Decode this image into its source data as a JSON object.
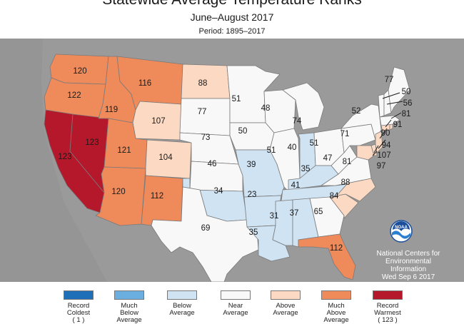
{
  "title": "Statewide Average Temperature Ranks",
  "subtitle": "June–August 2017",
  "period": "Period: 1895–2017",
  "agency": {
    "line1": "National Centers for",
    "line2": "Environmental",
    "line3": "Information",
    "date": "Wed Sep  6 2017",
    "logo_text": "NOAA"
  },
  "legend": [
    {
      "line1": "Record",
      "line2": "Coldest",
      "line3": "( 1 )",
      "color": "#1f6fb8"
    },
    {
      "line1": "Much",
      "line2": "Below",
      "line3": "Average",
      "color": "#6baee0"
    },
    {
      "line1": "Below",
      "line2": "Average",
      "line3": "",
      "color": "#cfe3f3"
    },
    {
      "line1": "Near",
      "line2": "Average",
      "line3": "",
      "color": "#f8f8f8"
    },
    {
      "line1": "Above",
      "line2": "Average",
      "line3": "",
      "color": "#fcd9c3"
    },
    {
      "line1": "Much",
      "line2": "Above",
      "line3": "Average",
      "color": "#ef8a5a"
    },
    {
      "line1": "Record",
      "line2": "Warmest",
      "line3": "( 123 )",
      "color": "#b5182a"
    }
  ],
  "states": [
    {
      "state": "Washington",
      "rank": "120",
      "category": "Much Above Average"
    },
    {
      "state": "Oregon",
      "rank": "122",
      "category": "Much Above Average"
    },
    {
      "state": "California",
      "rank": "123",
      "category": "Record Warmest"
    },
    {
      "state": "Nevada",
      "rank": "123",
      "category": "Record Warmest"
    },
    {
      "state": "Idaho",
      "rank": "119",
      "category": "Much Above Average"
    },
    {
      "state": "Montana",
      "rank": "116",
      "category": "Much Above Average"
    },
    {
      "state": "Wyoming",
      "rank": "107",
      "category": "Above Average"
    },
    {
      "state": "Utah",
      "rank": "121",
      "category": "Much Above Average"
    },
    {
      "state": "Colorado",
      "rank": "104",
      "category": "Above Average"
    },
    {
      "state": "Arizona",
      "rank": "120",
      "category": "Much Above Average"
    },
    {
      "state": "New Mexico",
      "rank": "112",
      "category": "Much Above Average"
    },
    {
      "state": "North Dakota",
      "rank": "88",
      "category": "Above Average"
    },
    {
      "state": "South Dakota",
      "rank": "77",
      "category": "Near Average"
    },
    {
      "state": "Nebraska",
      "rank": "73",
      "category": "Near Average"
    },
    {
      "state": "Kansas",
      "rank": "46",
      "category": "Near Average"
    },
    {
      "state": "Oklahoma",
      "rank": "34",
      "category": "Below Average"
    },
    {
      "state": "Texas",
      "rank": "69",
      "category": "Near Average"
    },
    {
      "state": "Minnesota",
      "rank": "51",
      "category": "Near Average"
    },
    {
      "state": "Iowa",
      "rank": "50",
      "category": "Near Average"
    },
    {
      "state": "Missouri",
      "rank": "39",
      "category": "Below Average"
    },
    {
      "state": "Arkansas",
      "rank": "23",
      "category": "Below Average"
    },
    {
      "state": "Louisiana",
      "rank": "35",
      "category": "Below Average"
    },
    {
      "state": "Wisconsin",
      "rank": "48",
      "category": "Near Average"
    },
    {
      "state": "Illinois",
      "rank": "51",
      "category": "Near Average"
    },
    {
      "state": "Michigan",
      "rank": "74",
      "category": "Near Average"
    },
    {
      "state": "Indiana",
      "rank": "40",
      "category": "Below Average"
    },
    {
      "state": "Ohio",
      "rank": "51",
      "category": "Near Average"
    },
    {
      "state": "Kentucky",
      "rank": "35",
      "category": "Below Average"
    },
    {
      "state": "Tennessee",
      "rank": "41",
      "category": "Below Average"
    },
    {
      "state": "Mississippi",
      "rank": "31",
      "category": "Below Average"
    },
    {
      "state": "Alabama",
      "rank": "37",
      "category": "Below Average"
    },
    {
      "state": "Georgia",
      "rank": "65",
      "category": "Near Average"
    },
    {
      "state": "Florida",
      "rank": "112",
      "category": "Much Above Average"
    },
    {
      "state": "South Carolina",
      "rank": "84",
      "category": "Above Average"
    },
    {
      "state": "North Carolina",
      "rank": "88",
      "category": "Above Average"
    },
    {
      "state": "Virginia",
      "rank": "81",
      "category": "Near Average"
    },
    {
      "state": "West Virginia",
      "rank": "47",
      "category": "Near Average"
    },
    {
      "state": "Pennsylvania",
      "rank": "71",
      "category": "Near Average"
    },
    {
      "state": "New York",
      "rank": "52",
      "category": "Near Average"
    },
    {
      "state": "Vermont",
      "rank": "50",
      "category": "Near Average"
    },
    {
      "state": "New Hampshire",
      "rank": "56",
      "category": "Near Average"
    },
    {
      "state": "Maine",
      "rank": "77",
      "category": "Near Average"
    },
    {
      "state": "Massachusetts",
      "rank": "81",
      "category": "Near Average"
    },
    {
      "state": "Connecticut",
      "rank": "91",
      "category": "Above Average"
    },
    {
      "state": "New Jersey",
      "rank": "90",
      "category": "Above Average"
    },
    {
      "state": "Delaware",
      "rank": "94",
      "category": "Above Average"
    },
    {
      "state": "Maryland",
      "rank": "107",
      "category": "Above Average"
    },
    {
      "state": "Rhode Island",
      "rank": "97",
      "category": "Above Average"
    }
  ]
}
